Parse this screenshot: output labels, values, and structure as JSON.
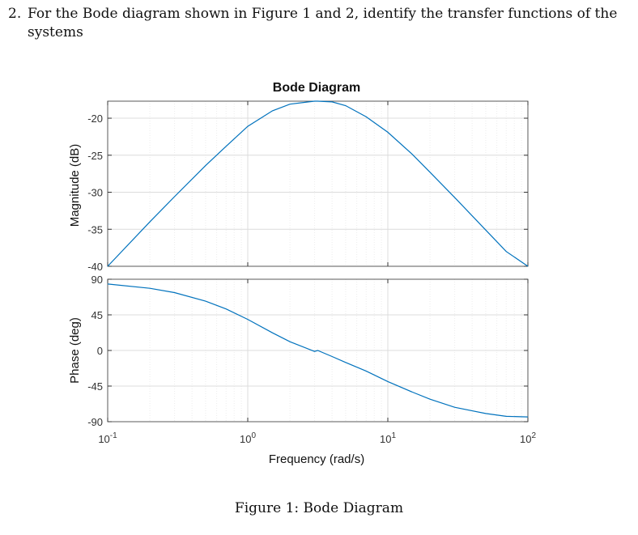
{
  "question": {
    "number": "2.",
    "text_line1": "For the Bode diagram shown in Figure 1 and 2, identify the transfer functions of the",
    "text_line2": "systems"
  },
  "caption": "Figure 1: Bode Diagram",
  "chart_data": {
    "type": "line",
    "title": "Bode Diagram",
    "xlabel": "Frequency (rad/s)",
    "x_scale": "log",
    "xlim": [
      0.1,
      100
    ],
    "x_ticks": [
      0.1,
      1,
      10,
      100
    ],
    "x_tick_labels": [
      {
        "base": "10",
        "exp": "-1"
      },
      {
        "base": "10",
        "exp": "0"
      },
      {
        "base": "10",
        "exp": "1"
      },
      {
        "base": "10",
        "exp": "2"
      }
    ],
    "grid": true,
    "line_color": "#0072BD",
    "panels": [
      {
        "name": "magnitude",
        "ylabel": "Magnitude (dB)",
        "ylim": [
          -40,
          -17.7
        ],
        "y_ticks": [
          -40,
          -35,
          -30,
          -25,
          -20
        ],
        "y_tick_labels": [
          "-40",
          "-35",
          "-30",
          "-25",
          "-20"
        ],
        "series": [
          {
            "x": [
              0.1,
              0.2,
              0.3,
              0.5,
              0.7,
              1,
              1.5,
              2,
              3,
              3.16,
              4,
              5,
              7,
              10,
              15,
              20,
              30,
              50,
              70,
              100
            ],
            "y": [
              -40.0,
              -34.0,
              -30.6,
              -26.4,
              -23.8,
              -21.1,
              -19.0,
              -18.1,
              -17.7,
              -17.7,
              -17.8,
              -18.3,
              -19.8,
              -21.9,
              -24.9,
              -27.3,
              -30.7,
              -35.1,
              -38.0,
              -40.0
            ]
          }
        ]
      },
      {
        "name": "phase",
        "ylabel": "Phase (deg)",
        "ylim": [
          -90,
          90
        ],
        "y_ticks": [
          -90,
          -45,
          0,
          45,
          90
        ],
        "y_tick_labels": [
          "-90",
          "-45",
          "0",
          "45",
          "90"
        ],
        "series": [
          {
            "x": [
              0.1,
              0.2,
              0.3,
              0.5,
              0.7,
              1,
              1.5,
              2,
              3,
              3.16,
              4,
              5,
              7,
              10,
              15,
              20,
              30,
              50,
              70,
              100
            ],
            "y": [
              84.0,
              78.5,
              73.1,
              62.3,
              52.5,
              39.3,
              22.3,
              11.0,
              -1.2,
              0.0,
              -7.7,
              -15.1,
              -26.0,
              -39.3,
              -52.7,
              -61.6,
              -71.8,
              -79.7,
              -83.2,
              -84.0
            ]
          }
        ]
      }
    ]
  }
}
